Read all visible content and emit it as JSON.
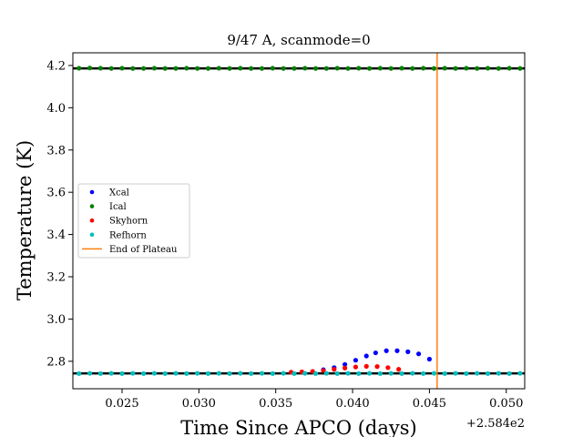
{
  "chart_data": {
    "type": "scatter",
    "title": "9/47 A, scanmode=0",
    "xlabel": "Time Since APCO (days)",
    "ylabel": "Temperature (K)",
    "x_offset_label": "+2.584e2",
    "xlim": [
      0.0218,
      0.0512
    ],
    "ylim": [
      2.67,
      4.26
    ],
    "xticks": [
      0.025,
      0.03,
      0.035,
      0.04,
      0.045,
      0.05
    ],
    "xtick_labels": [
      "0.025",
      "0.030",
      "0.035",
      "0.040",
      "0.045",
      "0.050"
    ],
    "yticks": [
      2.8,
      3.0,
      3.2,
      3.4,
      3.6,
      3.8,
      4.0,
      4.2
    ],
    "ytick_labels": [
      "2.8",
      "3.0",
      "3.2",
      "3.4",
      "3.6",
      "3.8",
      "4.0",
      "4.2"
    ],
    "grid": false,
    "legend_position": "center-left",
    "series": [
      {
        "name": "Xcal",
        "color": "#0000ff",
        "x": [
          0.0381,
          0.0388,
          0.0395,
          0.0402,
          0.0409,
          0.0415,
          0.0422,
          0.0429,
          0.0436,
          0.0443,
          0.045
        ],
        "y": [
          2.76,
          2.77,
          2.785,
          2.805,
          2.825,
          2.84,
          2.85,
          2.85,
          2.845,
          2.835,
          2.81
        ]
      },
      {
        "name": "Ical",
        "color": "#008000",
        "x": [
          0.0222,
          0.0229,
          0.0236,
          0.0243,
          0.025,
          0.0257,
          0.0264,
          0.0271,
          0.0278,
          0.0285,
          0.0292,
          0.0299,
          0.0306,
          0.0313,
          0.032,
          0.0327,
          0.0334,
          0.0341,
          0.0348,
          0.0355,
          0.0362,
          0.0369,
          0.0376,
          0.0383,
          0.039,
          0.0397,
          0.0404,
          0.0411,
          0.0418,
          0.0425,
          0.0432,
          0.0439,
          0.0446,
          0.0453,
          0.046,
          0.0467,
          0.0474,
          0.0481,
          0.0488,
          0.0495,
          0.0502,
          0.0509
        ],
        "y": [
          4.187,
          4.188,
          4.187,
          4.186,
          4.187,
          4.186,
          4.186,
          4.187,
          4.186,
          4.186,
          4.187,
          4.186,
          4.186,
          4.187,
          4.186,
          4.187,
          4.186,
          4.186,
          4.187,
          4.186,
          4.186,
          4.187,
          4.186,
          4.186,
          4.187,
          4.186,
          4.187,
          4.186,
          4.187,
          4.186,
          4.187,
          4.186,
          4.187,
          4.186,
          4.187,
          4.186,
          4.187,
          4.186,
          4.187,
          4.186,
          4.187,
          4.186
        ]
      },
      {
        "name": "Skyhorn",
        "color": "#ff0000",
        "x": [
          0.036,
          0.0367,
          0.0374,
          0.0381,
          0.0388,
          0.0395,
          0.0402,
          0.0409,
          0.0416,
          0.0423,
          0.043
        ],
        "y": [
          2.748,
          2.75,
          2.752,
          2.756,
          2.762,
          2.768,
          2.773,
          2.776,
          2.775,
          2.77,
          2.762
        ]
      },
      {
        "name": "Refhorn",
        "color": "#00bfbf",
        "x": [
          0.0222,
          0.0229,
          0.0236,
          0.0243,
          0.025,
          0.0257,
          0.0264,
          0.0271,
          0.0278,
          0.0285,
          0.0292,
          0.0299,
          0.0306,
          0.0313,
          0.032,
          0.0327,
          0.0334,
          0.0341,
          0.0348,
          0.0355,
          0.0362,
          0.0369,
          0.0376,
          0.0383,
          0.039,
          0.0397,
          0.0404,
          0.0411,
          0.0418,
          0.0425,
          0.0432,
          0.0439,
          0.0446,
          0.0453,
          0.046,
          0.0467,
          0.0474,
          0.0481,
          0.0488,
          0.0495,
          0.0502,
          0.0509
        ],
        "y": [
          2.742,
          2.743,
          2.742,
          2.743,
          2.742,
          2.743,
          2.742,
          2.743,
          2.742,
          2.743,
          2.742,
          2.743,
          2.742,
          2.743,
          2.742,
          2.743,
          2.742,
          2.743,
          2.742,
          2.743,
          2.742,
          2.743,
          2.742,
          2.743,
          2.742,
          2.743,
          2.742,
          2.743,
          2.742,
          2.743,
          2.742,
          2.743,
          2.742,
          2.743,
          2.742,
          2.743,
          2.742,
          2.743,
          2.742,
          2.743,
          2.742,
          2.743
        ]
      }
    ],
    "vline": {
      "name": "End of Plateau",
      "x": 0.0455,
      "color": "#ff7f0e"
    }
  }
}
